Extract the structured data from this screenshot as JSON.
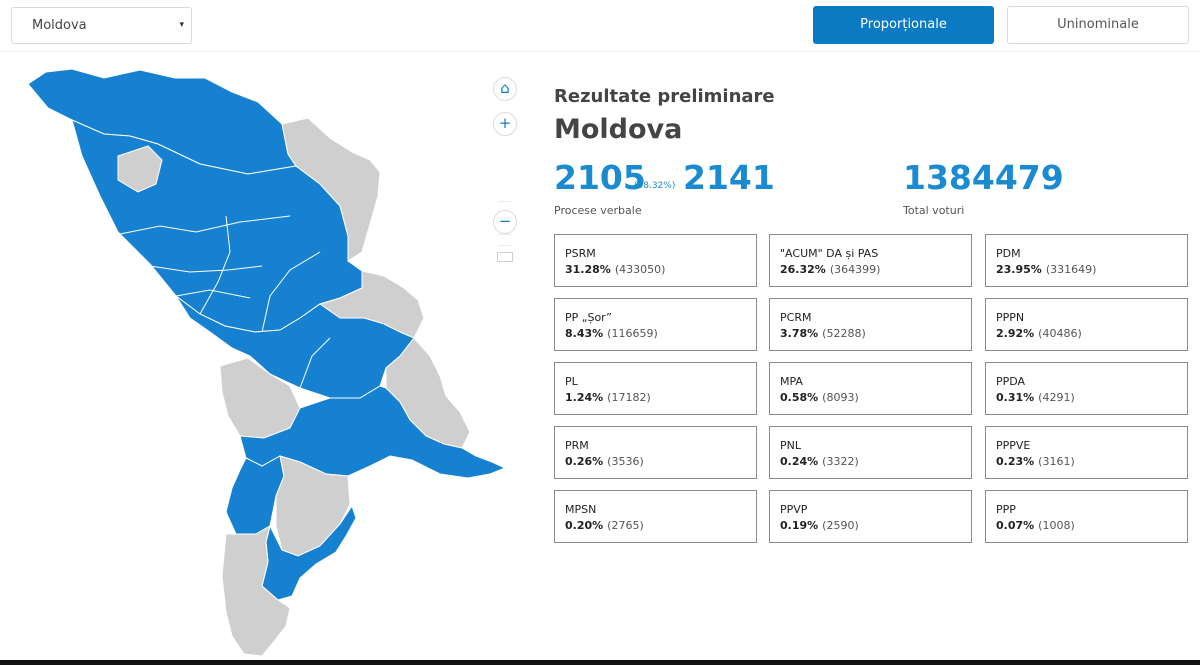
{
  "region_select": {
    "value": "Moldova",
    "caret": "▾"
  },
  "tabs": {
    "proportionale": "Proporționale",
    "uninominale": "Uninominale"
  },
  "map_controls": {
    "home_icon": "home-icon",
    "zoom_in": "+",
    "zoom_out": "−"
  },
  "colors": {
    "accent": "#0a7bc2",
    "region_blue": "#1681d1",
    "region_grey": "#cfcfcf"
  },
  "results": {
    "subtitle": "Rezultate preliminare",
    "title": "Moldova",
    "processed": "2105",
    "processed_pct": "(98.32%)",
    "total_protocols": "2141",
    "protocols_label": "Procese verbale",
    "total_votes": "1384479",
    "votes_label": "Total voturi"
  },
  "parties": [
    {
      "name": "PSRM",
      "pct": "31.28%",
      "votes": "(433050)"
    },
    {
      "name": "\"ACUM\" DA și PAS",
      "pct": "26.32%",
      "votes": "(364399)"
    },
    {
      "name": "PDM",
      "pct": "23.95%",
      "votes": "(331649)"
    },
    {
      "name": "PP „Șor”",
      "pct": "8.43%",
      "votes": "(116659)"
    },
    {
      "name": "PCRM",
      "pct": "3.78%",
      "votes": "(52288)"
    },
    {
      "name": "PPPN",
      "pct": "2.92%",
      "votes": "(40486)"
    },
    {
      "name": "PL",
      "pct": "1.24%",
      "votes": "(17182)"
    },
    {
      "name": "MPA",
      "pct": "0.58%",
      "votes": "(8093)"
    },
    {
      "name": "PPDA",
      "pct": "0.31%",
      "votes": "(4291)"
    },
    {
      "name": "PRM",
      "pct": "0.26%",
      "votes": "(3536)"
    },
    {
      "name": "PNL",
      "pct": "0.24%",
      "votes": "(3322)"
    },
    {
      "name": "PPPVE",
      "pct": "0.23%",
      "votes": "(3161)"
    },
    {
      "name": "MPSN",
      "pct": "0.20%",
      "votes": "(2765)"
    },
    {
      "name": "PPVP",
      "pct": "0.19%",
      "votes": "(2590)"
    },
    {
      "name": "PPP",
      "pct": "0.07%",
      "votes": "(1008)"
    }
  ]
}
